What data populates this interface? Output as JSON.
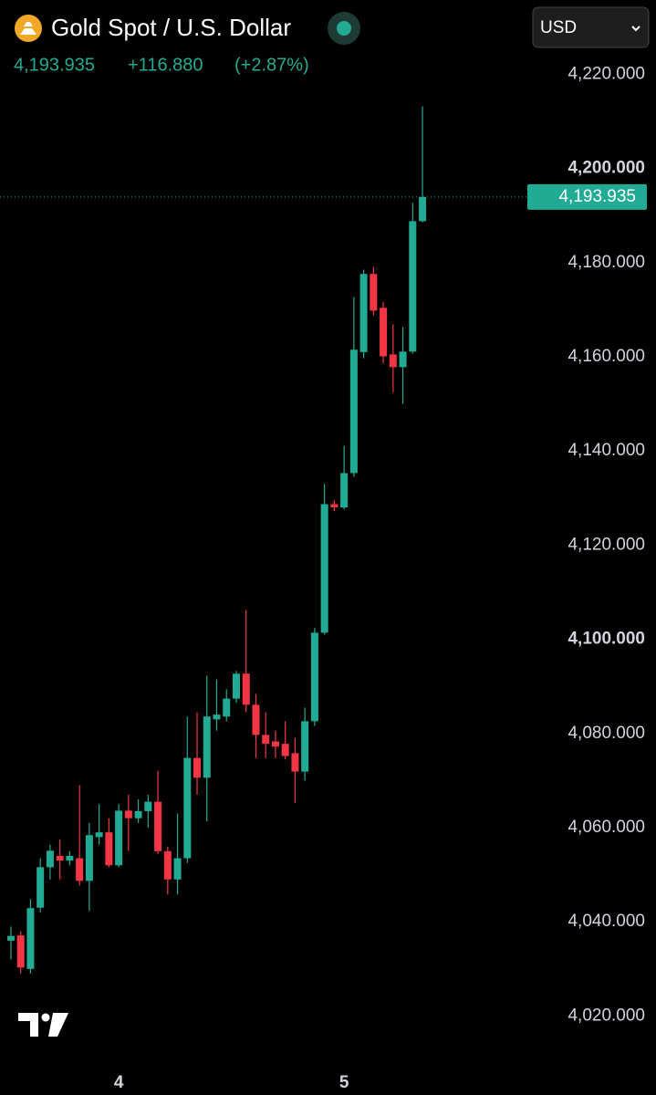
{
  "header": {
    "symbol": "Gold Spot / U.S. Dollar",
    "price": "4,193.935",
    "change": "+116.880",
    "change_pct": "(+2.87%)",
    "currency": "USD"
  },
  "chart_data": {
    "type": "candlestick",
    "categories": [
      null,
      null,
      null,
      null,
      null,
      null,
      null,
      null,
      null,
      null,
      null,
      "4",
      null,
      null,
      null,
      null,
      null,
      null,
      null,
      null,
      null,
      null,
      null,
      null,
      null,
      null,
      null,
      null,
      null,
      null,
      null,
      null,
      null,
      null,
      "5",
      null,
      null,
      null,
      null,
      null,
      null,
      null,
      null
    ],
    "series": [
      {
        "up_color": "#22ab94",
        "down_color": "#f23645",
        "open": [
          4036,
          4037.1,
          4030,
          4043,
          4051.6,
          4054,
          4053,
          4053.5,
          4048.7,
          4058,
          4059,
          4052,
          4063.6,
          4062,
          4063.5,
          4065.5,
          4055,
          4049,
          4053.5,
          4074.8,
          4070.6,
          4083,
          4083.6,
          4087.4,
          4092.7,
          4086.1,
          4079.7,
          4078.3,
          4077.8,
          4075.8,
          4071.9,
          4082.6,
          4101.4,
          4128.7,
          4128,
          4135.3,
          4161,
          4177.6,
          4170.4,
          4160.5,
          4157.8,
          4161.1,
          4188.8
        ],
        "high": [
          4039,
          4038,
          4044.8,
          4053.5,
          4056.4,
          4057.5,
          4055,
          4069,
          4061,
          4065,
          4062,
          4065,
          4067,
          4066,
          4067,
          4072,
          4056,
          4063,
          4083.6,
          4084.5,
          4092.3,
          4091.5,
          4089.4,
          4093.3,
          4106.2,
          4088.4,
          4084.5,
          4080.6,
          4082.6,
          4079.1,
          4085.5,
          4102.4,
          4133,
          4129.5,
          4141.1,
          4172.7,
          4178.5,
          4179.1,
          4171.7,
          4166.9,
          4166.3,
          4192.7,
          4213.2
        ],
        "low": [
          4032,
          4029,
          4029,
          4042,
          4049,
          4049,
          4052,
          4047.7,
          4042.3,
          4056.4,
          4051.6,
          4051.6,
          4055,
          4061,
          4060,
          4054.4,
          4045.8,
          4045.8,
          4052.5,
          4067,
          4061.3,
          4080.6,
          4082.6,
          4086.5,
          4084.5,
          4074.8,
          4074.8,
          4074.8,
          4074.5,
          4065.2,
          4070,
          4081.6,
          4101,
          4127.2,
          4127.6,
          4134.5,
          4159.7,
          4168.8,
          4158.6,
          4152.4,
          4150,
          4160.7,
          4188.6
        ],
        "close": [
          4037,
          4030.3,
          4042.9,
          4051.6,
          4055.1,
          4053,
          4054,
          4048.7,
          4058.4,
          4059,
          4052,
          4063.6,
          4062,
          4063.5,
          4065.5,
          4055,
          4049,
          4053.5,
          4074.8,
          4070.6,
          4083.6,
          4084,
          4087.4,
          4092.7,
          4086.1,
          4079.7,
          4077.8,
          4077.2,
          4075.2,
          4071.9,
          4082.6,
          4101.4,
          4128.7,
          4128,
          4135.3,
          4161.5,
          4177.6,
          4169.8,
          4160.1,
          4157.8,
          4161.1,
          4188.8,
          4193.935
        ]
      }
    ],
    "last_price": {
      "value": 4193.935,
      "label": "4,193.935"
    },
    "ylim": [
      4010,
      4235
    ],
    "yticks": [
      {
        "value": 4020,
        "label": "4,020.000"
      },
      {
        "value": 4040,
        "label": "4,040.000"
      },
      {
        "value": 4060,
        "label": "4,060.000"
      },
      {
        "value": 4080,
        "label": "4,080.000"
      },
      {
        "value": 4100,
        "label": "4,100.000"
      },
      {
        "value": 4120,
        "label": "4,120.000"
      },
      {
        "value": 4140,
        "label": "4,140.000"
      },
      {
        "value": 4160,
        "label": "4,160.000"
      },
      {
        "value": 4180,
        "label": "4,180.000"
      },
      {
        "value": 4200,
        "label": "4,200.000"
      },
      {
        "value": 4220,
        "label": "4,220.000"
      }
    ]
  }
}
